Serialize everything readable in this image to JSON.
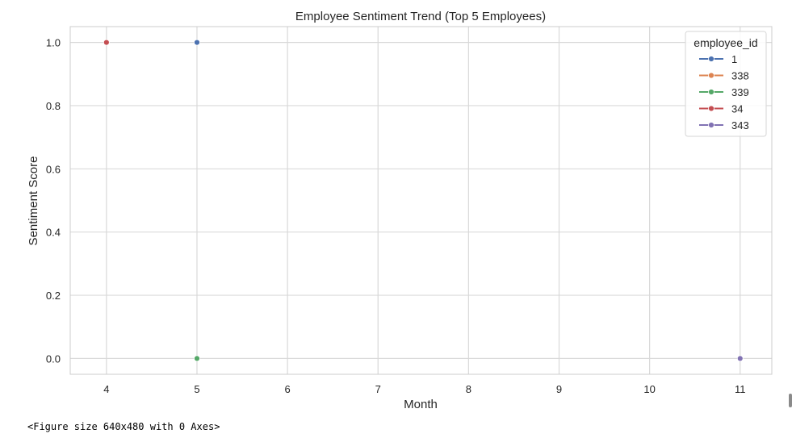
{
  "output_caption": "<Figure size 640x480 with 0 Axes>",
  "colors": {
    "background": "#ffffff",
    "plot_bg": "#ffffff",
    "grid": "#d9d9d9",
    "spine": "#cccccc",
    "text": "#262626"
  },
  "chart_data": {
    "type": "line",
    "title": "Employee Sentiment Trend (Top 5 Employees)",
    "xlabel": "Month",
    "ylabel": "Sentiment Score",
    "xlim": [
      3.6,
      11.35
    ],
    "ylim": [
      -0.05,
      1.05
    ],
    "xticks": [
      4,
      5,
      6,
      7,
      8,
      9,
      10,
      11
    ],
    "yticks": [
      0.0,
      0.2,
      0.4,
      0.6,
      0.8,
      1.0
    ],
    "ytick_labels": [
      "0.0",
      "0.2",
      "0.4",
      "0.6",
      "0.8",
      "1.0"
    ],
    "grid": true,
    "legend": {
      "title": "employee_id",
      "placement": "top-right"
    },
    "series": [
      {
        "name": "1",
        "color": "#4c72b0",
        "x": [
          5
        ],
        "y": [
          1.0
        ]
      },
      {
        "name": "338",
        "color": "#dd8452",
        "x": [],
        "y": []
      },
      {
        "name": "339",
        "color": "#55a868",
        "x": [
          5
        ],
        "y": [
          0.0
        ]
      },
      {
        "name": "34",
        "color": "#c44e52",
        "x": [
          4
        ],
        "y": [
          1.0
        ]
      },
      {
        "name": "343",
        "color": "#8172b3",
        "x": [
          11
        ],
        "y": [
          0.0
        ]
      }
    ]
  }
}
